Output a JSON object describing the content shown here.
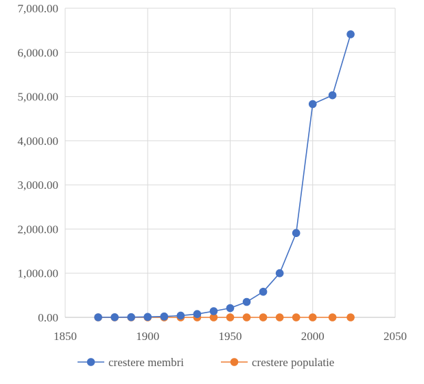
{
  "chart_data": {
    "type": "scatter",
    "title": "",
    "xlabel": "",
    "ylabel": "",
    "xlim": [
      1850,
      2050
    ],
    "ylim": [
      0,
      7000
    ],
    "x_ticks": [
      1850,
      1900,
      1950,
      2000,
      2050
    ],
    "x_tick_labels": [
      "1850",
      "1900",
      "1950",
      "2000",
      "2050"
    ],
    "y_ticks": [
      0,
      1000,
      2000,
      3000,
      4000,
      5000,
      6000,
      7000
    ],
    "y_tick_labels": [
      "0.00",
      "1,000.00",
      "2,000.00",
      "3,000.00",
      "4,000.00",
      "5,000.00",
      "6,000.00",
      "7,000.00"
    ],
    "grid": true,
    "legend_position": "bottom",
    "series": [
      {
        "name": "crestere membri",
        "color": "#4472C4",
        "x": [
          1870,
          1880,
          1890,
          1900,
          1910,
          1920,
          1930,
          1940,
          1950,
          1960,
          1970,
          1980,
          1990,
          2000,
          2012,
          2023
        ],
        "y": [
          2,
          3,
          5,
          10,
          20,
          40,
          75,
          140,
          210,
          350,
          580,
          1000,
          1910,
          4830,
          5030,
          6410
        ]
      },
      {
        "name": "crestere populatie",
        "color": "#ED7D31",
        "x": [
          1870,
          1880,
          1890,
          1900,
          1910,
          1920,
          1930,
          1940,
          1950,
          1960,
          1970,
          1980,
          1990,
          2000,
          2012,
          2023
        ],
        "y": [
          0,
          0,
          0,
          0,
          0,
          0,
          0,
          0,
          0,
          0,
          0,
          0,
          0,
          0,
          0,
          0
        ]
      }
    ]
  }
}
